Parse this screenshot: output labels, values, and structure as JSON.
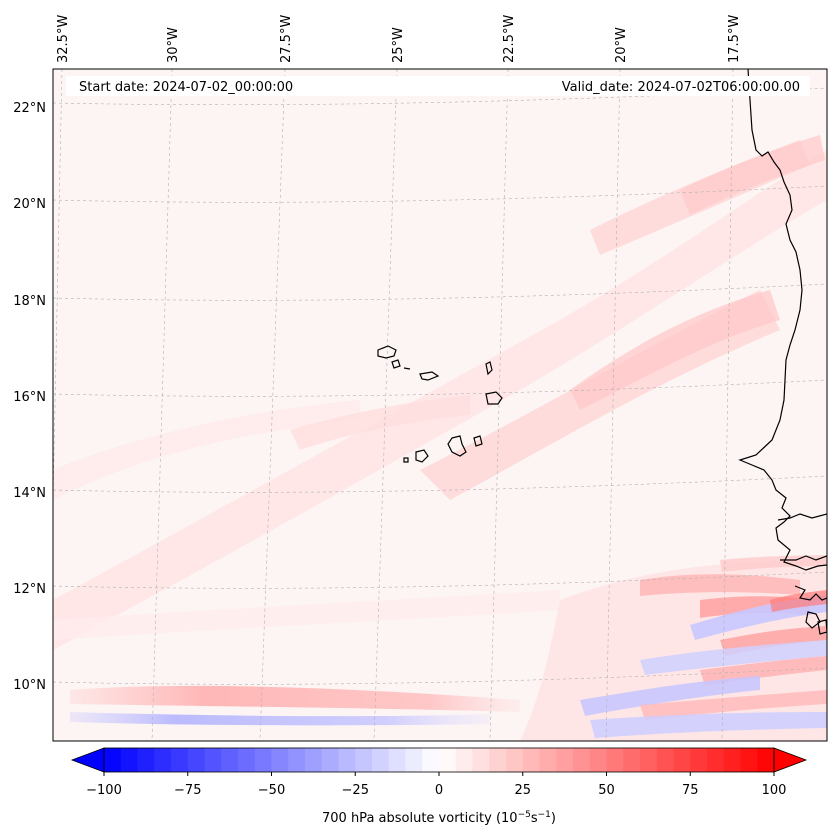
{
  "map": {
    "start_date": "Start date: 2024-07-02_00:00:00",
    "valid_date": "Valid_date: 2024-07-02T06:00:00.00",
    "lon_labels": [
      "32.5°W",
      "30°W",
      "27.5°W",
      "25°W",
      "22.5°W",
      "20°W",
      "17.5°W"
    ],
    "lat_labels": [
      "22°N",
      "20°N",
      "18°N",
      "16°N",
      "14°N",
      "12°N",
      "10°N"
    ],
    "extent": {
      "lon_min": -33,
      "lon_max": -15.4,
      "lat_min": 8.9,
      "lat_max": 22.8
    },
    "field": "700 hPa absolute vorticity",
    "colors": {
      "negative_max": "#0000ff",
      "neutral": "#ffffff",
      "positive_max": "#ff0000",
      "coastline": "#000000",
      "gridline": "#b0b0b0"
    }
  },
  "colorbar": {
    "label_prefix": "700 hPa absolute vorticity (10",
    "exp1": "−5",
    "mid": "s",
    "exp2": "−1",
    "suffix": ")",
    "tick_labels": [
      "−100",
      "−75",
      "−50",
      "−25",
      "0",
      "25",
      "50",
      "75",
      "100"
    ],
    "min": -100,
    "max": 100,
    "n_levels": 40
  }
}
